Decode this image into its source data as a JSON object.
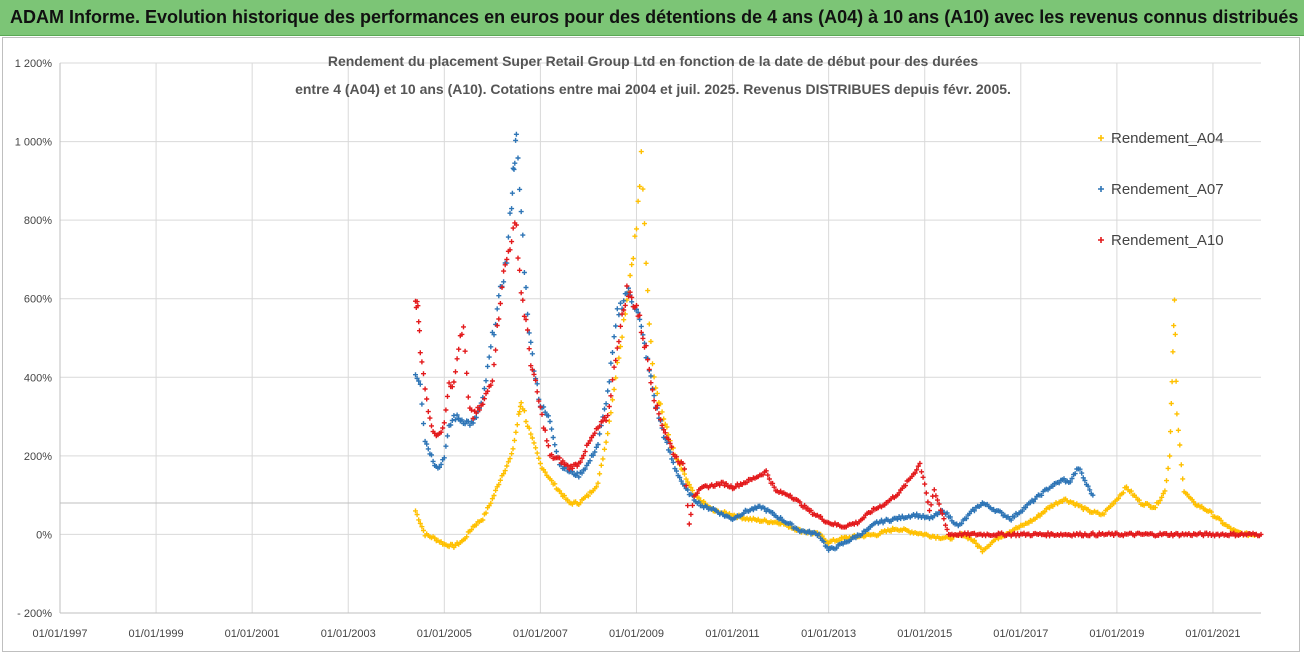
{
  "banner": {
    "title": "ADAM Informe. Evolution historique des performances en euros pour des détentions de 4 ans (A04) à 10 ans (A10) avec les revenus connus distribués"
  },
  "chart_data": {
    "type": "scatter",
    "title_lines": [
      "Rendement du placement Super Retail Group Ltd en fonction de la date de début pour des durées",
      "entre 4 (A04) et 10 ans (A10). Cotations entre mai 2004 et juil. 2025. Revenus DISTRIBUES depuis févr. 2005."
    ],
    "xlabel": "",
    "ylabel": "",
    "x_ticks": [
      "01/01/1997",
      "01/01/1999",
      "01/01/2001",
      "01/01/2003",
      "01/01/2005",
      "01/01/2007",
      "01/01/2009",
      "01/01/2011",
      "01/01/2013",
      "01/01/2015",
      "01/01/2017",
      "01/01/2019",
      "01/01/2021"
    ],
    "y_ticks": [
      "- 200%",
      "0%",
      "200%",
      "400%",
      "600%",
      "800%",
      "1 000%",
      "1 200%"
    ],
    "xlim": [
      1997.0,
      2022.0
    ],
    "ylim": [
      -200,
      1200
    ],
    "grid": true,
    "legend_position": "right",
    "series": [
      {
        "name": "Rendement_A04",
        "color": "#FFC000",
        "points": [
          [
            2004.4,
            60
          ],
          [
            2004.6,
            0
          ],
          [
            2004.8,
            -10
          ],
          [
            2005.0,
            -25
          ],
          [
            2005.2,
            -30
          ],
          [
            2005.4,
            -15
          ],
          [
            2005.6,
            20
          ],
          [
            2005.8,
            40
          ],
          [
            2006.0,
            90
          ],
          [
            2006.2,
            150
          ],
          [
            2006.4,
            200
          ],
          [
            2006.55,
            300
          ],
          [
            2006.6,
            340
          ],
          [
            2006.8,
            250
          ],
          [
            2007.0,
            180
          ],
          [
            2007.2,
            140
          ],
          [
            2007.4,
            110
          ],
          [
            2007.6,
            80
          ],
          [
            2007.8,
            80
          ],
          [
            2008.0,
            100
          ],
          [
            2008.2,
            130
          ],
          [
            2008.4,
            260
          ],
          [
            2008.6,
            430
          ],
          [
            2008.8,
            600
          ],
          [
            2009.0,
            780
          ],
          [
            2009.1,
            950
          ],
          [
            2009.2,
            700
          ],
          [
            2009.3,
            480
          ],
          [
            2009.4,
            380
          ],
          [
            2009.6,
            280
          ],
          [
            2009.8,
            200
          ],
          [
            2010.0,
            150
          ],
          [
            2010.2,
            100
          ],
          [
            2010.4,
            80
          ],
          [
            2010.6,
            60
          ],
          [
            2010.8,
            55
          ],
          [
            2011.0,
            50
          ],
          [
            2011.3,
            40
          ],
          [
            2011.6,
            35
          ],
          [
            2012.0,
            30
          ],
          [
            2012.4,
            10
          ],
          [
            2012.8,
            0
          ],
          [
            2013.0,
            -20
          ],
          [
            2013.3,
            -10
          ],
          [
            2013.6,
            -5
          ],
          [
            2014.0,
            0
          ],
          [
            2014.4,
            15
          ],
          [
            2014.8,
            5
          ],
          [
            2015.2,
            -5
          ],
          [
            2015.5,
            -10
          ],
          [
            2015.8,
            0
          ],
          [
            2016.0,
            -15
          ],
          [
            2016.2,
            -40
          ],
          [
            2016.5,
            -10
          ],
          [
            2016.8,
            10
          ],
          [
            2017.0,
            20
          ],
          [
            2017.3,
            40
          ],
          [
            2017.6,
            70
          ],
          [
            2017.9,
            90
          ],
          [
            2018.1,
            80
          ],
          [
            2018.4,
            60
          ],
          [
            2018.7,
            50
          ],
          [
            2019.0,
            90
          ],
          [
            2019.2,
            120
          ],
          [
            2019.5,
            80
          ],
          [
            2019.8,
            70
          ],
          [
            2020.0,
            110
          ],
          [
            2020.1,
            200
          ],
          [
            2020.15,
            400
          ],
          [
            2020.2,
            590
          ],
          [
            2020.25,
            300
          ],
          [
            2020.4,
            110
          ],
          [
            2020.6,
            80
          ],
          [
            2020.9,
            60
          ],
          [
            2021.1,
            40
          ],
          [
            2021.3,
            20
          ],
          [
            2021.5,
            5
          ],
          [
            2021.7,
            0
          ],
          [
            2021.9,
            0
          ]
        ]
      },
      {
        "name": "Rendement_A07",
        "color": "#2E75B6",
        "points": [
          [
            2004.4,
            410
          ],
          [
            2004.5,
            390
          ],
          [
            2004.6,
            240
          ],
          [
            2004.7,
            210
          ],
          [
            2004.8,
            180
          ],
          [
            2004.9,
            170
          ],
          [
            2005.0,
            200
          ],
          [
            2005.1,
            270
          ],
          [
            2005.2,
            300
          ],
          [
            2005.4,
            290
          ],
          [
            2005.6,
            280
          ],
          [
            2005.8,
            340
          ],
          [
            2006.0,
            500
          ],
          [
            2006.2,
            640
          ],
          [
            2006.3,
            700
          ],
          [
            2006.4,
            850
          ],
          [
            2006.45,
            950
          ],
          [
            2006.5,
            1000
          ],
          [
            2006.6,
            820
          ],
          [
            2006.7,
            620
          ],
          [
            2006.8,
            480
          ],
          [
            2007.0,
            330
          ],
          [
            2007.2,
            290
          ],
          [
            2007.4,
            180
          ],
          [
            2007.6,
            160
          ],
          [
            2007.8,
            150
          ],
          [
            2008.0,
            180
          ],
          [
            2008.2,
            230
          ],
          [
            2008.4,
            360
          ],
          [
            2008.6,
            560
          ],
          [
            2008.8,
            620
          ],
          [
            2009.0,
            580
          ],
          [
            2009.2,
            460
          ],
          [
            2009.4,
            330
          ],
          [
            2009.6,
            240
          ],
          [
            2009.8,
            170
          ],
          [
            2010.0,
            120
          ],
          [
            2010.2,
            90
          ],
          [
            2010.4,
            70
          ],
          [
            2010.6,
            65
          ],
          [
            2010.8,
            50
          ],
          [
            2011.0,
            40
          ],
          [
            2011.3,
            60
          ],
          [
            2011.6,
            70
          ],
          [
            2012.0,
            40
          ],
          [
            2012.4,
            10
          ],
          [
            2012.8,
            0
          ],
          [
            2013.0,
            -40
          ],
          [
            2013.2,
            -30
          ],
          [
            2013.5,
            -10
          ],
          [
            2013.8,
            10
          ],
          [
            2014.0,
            30
          ],
          [
            2014.4,
            40
          ],
          [
            2014.8,
            50
          ],
          [
            2015.1,
            40
          ],
          [
            2015.4,
            60
          ],
          [
            2015.7,
            20
          ],
          [
            2016.0,
            60
          ],
          [
            2016.2,
            80
          ],
          [
            2016.5,
            60
          ],
          [
            2016.8,
            40
          ],
          [
            2017.0,
            60
          ],
          [
            2017.3,
            90
          ],
          [
            2017.6,
            120
          ],
          [
            2017.9,
            140
          ],
          [
            2018.0,
            130
          ],
          [
            2018.2,
            170
          ],
          [
            2018.4,
            120
          ],
          [
            2018.5,
            100
          ]
        ]
      },
      {
        "name": "Rendement_A10",
        "color": "#E31A1C",
        "points": [
          [
            2004.4,
            580
          ],
          [
            2004.45,
            600
          ],
          [
            2004.5,
            460
          ],
          [
            2004.6,
            380
          ],
          [
            2004.7,
            290
          ],
          [
            2004.8,
            260
          ],
          [
            2004.9,
            250
          ],
          [
            2005.0,
            290
          ],
          [
            2005.1,
            390
          ],
          [
            2005.2,
            380
          ],
          [
            2005.3,
            480
          ],
          [
            2005.4,
            520
          ],
          [
            2005.5,
            340
          ],
          [
            2005.6,
            300
          ],
          [
            2005.8,
            330
          ],
          [
            2006.0,
            400
          ],
          [
            2006.1,
            520
          ],
          [
            2006.2,
            640
          ],
          [
            2006.3,
            700
          ],
          [
            2006.4,
            760
          ],
          [
            2006.5,
            780
          ],
          [
            2006.6,
            620
          ],
          [
            2006.7,
            540
          ],
          [
            2006.8,
            440
          ],
          [
            2007.0,
            320
          ],
          [
            2007.2,
            200
          ],
          [
            2007.4,
            190
          ],
          [
            2007.6,
            170
          ],
          [
            2007.8,
            180
          ],
          [
            2008.0,
            230
          ],
          [
            2008.2,
            270
          ],
          [
            2008.4,
            300
          ],
          [
            2008.6,
            480
          ],
          [
            2008.8,
            620
          ],
          [
            2009.0,
            580
          ],
          [
            2009.2,
            470
          ],
          [
            2009.4,
            330
          ],
          [
            2009.6,
            260
          ],
          [
            2009.8,
            200
          ],
          [
            2010.0,
            170
          ],
          [
            2010.1,
            30
          ],
          [
            2010.2,
            100
          ],
          [
            2010.4,
            120
          ],
          [
            2010.8,
            130
          ],
          [
            2011.0,
            120
          ],
          [
            2011.4,
            140
          ],
          [
            2011.7,
            160
          ],
          [
            2011.9,
            110
          ],
          [
            2012.2,
            100
          ],
          [
            2012.6,
            60
          ],
          [
            2013.0,
            30
          ],
          [
            2013.3,
            20
          ],
          [
            2013.6,
            30
          ],
          [
            2013.9,
            60
          ],
          [
            2014.2,
            80
          ],
          [
            2014.5,
            110
          ],
          [
            2014.8,
            160
          ],
          [
            2014.9,
            180
          ],
          [
            2015.0,
            130
          ],
          [
            2015.1,
            60
          ],
          [
            2015.2,
            110
          ],
          [
            2015.4,
            40
          ],
          [
            2015.5,
            0
          ],
          [
            2016.0,
            0
          ],
          [
            2016.5,
            0
          ],
          [
            2017.0,
            0
          ],
          [
            2017.5,
            0
          ],
          [
            2018.0,
            0
          ],
          [
            2018.5,
            0
          ],
          [
            2019.0,
            0
          ],
          [
            2019.5,
            0
          ],
          [
            2020.0,
            0
          ],
          [
            2020.5,
            0
          ],
          [
            2021.0,
            0
          ],
          [
            2021.5,
            0
          ],
          [
            2022.0,
            0
          ]
        ]
      }
    ]
  }
}
